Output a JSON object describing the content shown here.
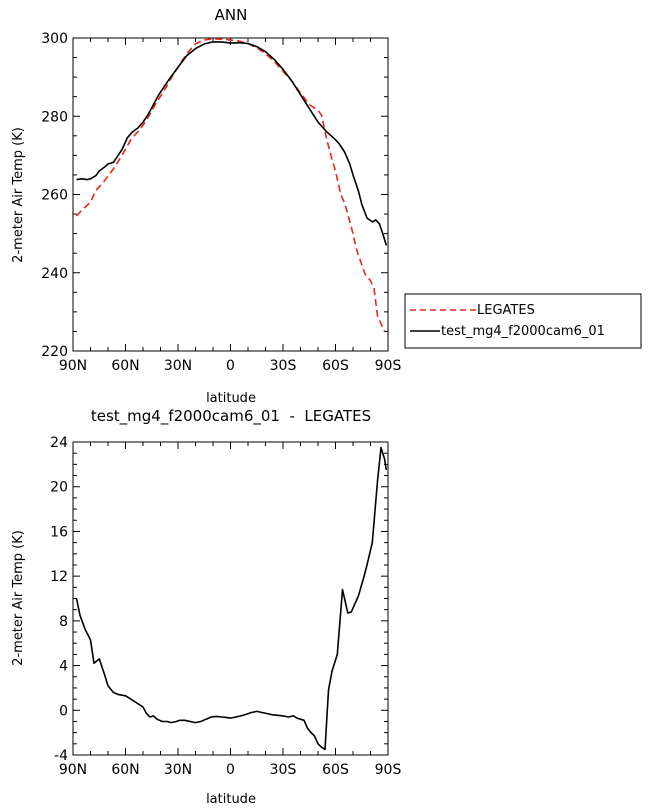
{
  "chart_data": [
    {
      "type": "line",
      "title": "ANN",
      "xlabel": "latitude",
      "ylabel": "2-meter Air Temp (K)",
      "x_tick_labels": [
        "90N",
        "60N",
        "30N",
        "0",
        "30S",
        "60S",
        "90S"
      ],
      "x_ticks": [
        90,
        60,
        30,
        0,
        -30,
        -60,
        -90
      ],
      "xlim": [
        90,
        -90
      ],
      "ylim": [
        220,
        300
      ],
      "y_ticks": [
        220,
        240,
        260,
        280,
        300
      ],
      "legend_position": "right",
      "series": [
        {
          "name": "LEGATES",
          "color": "#e8261e",
          "dash": "dashed",
          "points": [
            [
              88,
              254.5
            ],
            [
              85,
              256
            ],
            [
              80,
              258
            ],
            [
              77,
              261
            ],
            [
              72,
              263.5
            ],
            [
              67,
              266.5
            ],
            [
              62,
              270
            ],
            [
              57,
              274
            ],
            [
              52,
              276.5
            ],
            [
              48,
              279
            ],
            [
              43,
              283
            ],
            [
              38,
              286.5
            ],
            [
              33,
              290.5
            ],
            [
              28,
              294
            ],
            [
              24,
              296.5
            ],
            [
              20,
              298.5
            ],
            [
              15,
              299.5
            ],
            [
              10,
              299.8
            ],
            [
              5,
              299.7
            ],
            [
              0,
              299.5
            ],
            [
              -5,
              299.2
            ],
            [
              -10,
              298.6
            ],
            [
              -15,
              297.5
            ],
            [
              -20,
              296
            ],
            [
              -25,
              294
            ],
            [
              -30,
              291.5
            ],
            [
              -35,
              289
            ],
            [
              -40,
              286
            ],
            [
              -45,
              283
            ],
            [
              -50,
              281.5
            ],
            [
              -52,
              280.3
            ],
            [
              -55,
              274
            ],
            [
              -58,
              269
            ],
            [
              -60,
              266
            ],
            [
              -63,
              260
            ],
            [
              -65,
              258
            ],
            [
              -67,
              255
            ],
            [
              -70,
              250
            ],
            [
              -72,
              246
            ],
            [
              -75,
              242
            ],
            [
              -77,
              239.5
            ],
            [
              -80,
              238
            ],
            [
              -82,
              236
            ],
            [
              -84,
              229
            ],
            [
              -86,
              227
            ],
            [
              -88,
              225
            ]
          ]
        },
        {
          "name": "test_mg4_f2000cam6_01",
          "color": "#000000",
          "dash": "solid",
          "points": [
            [
              88,
              263.8
            ],
            [
              85,
              264
            ],
            [
              82,
              263.8
            ],
            [
              80,
              264
            ],
            [
              77,
              264.8
            ],
            [
              75,
              266
            ],
            [
              72,
              267
            ],
            [
              70,
              267.8
            ],
            [
              67,
              268.2
            ],
            [
              65,
              269.5
            ],
            [
              62,
              271.5
            ],
            [
              59,
              274.5
            ],
            [
              56,
              276
            ],
            [
              53,
              277
            ],
            [
              50,
              278.5
            ],
            [
              47,
              280.5
            ],
            [
              44,
              283
            ],
            [
              41,
              285.5
            ],
            [
              38,
              287.5
            ],
            [
              35,
              289.5
            ],
            [
              30,
              292.5
            ],
            [
              25,
              295.5
            ],
            [
              20,
              297.3
            ],
            [
              15,
              298.5
            ],
            [
              10,
              299
            ],
            [
              5,
              299
            ],
            [
              0,
              298.7
            ],
            [
              -5,
              298.8
            ],
            [
              -10,
              298.6
            ],
            [
              -15,
              297.8
            ],
            [
              -20,
              296.5
            ],
            [
              -25,
              294.5
            ],
            [
              -30,
              292
            ],
            [
              -35,
              289
            ],
            [
              -40,
              285.5
            ],
            [
              -45,
              282
            ],
            [
              -50,
              278.5
            ],
            [
              -55,
              276
            ],
            [
              -60,
              274
            ],
            [
              -62,
              273
            ],
            [
              -65,
              271
            ],
            [
              -68,
              268
            ],
            [
              -70,
              265
            ],
            [
              -73,
              261
            ],
            [
              -75,
              257.5
            ],
            [
              -78,
              254
            ],
            [
              -81,
              253
            ],
            [
              -83,
              253.5
            ],
            [
              -85,
              252.5
            ],
            [
              -87,
              250
            ],
            [
              -89,
              247
            ]
          ]
        }
      ]
    },
    {
      "type": "line",
      "title": "test_mg4_f2000cam6_01  -  LEGATES",
      "xlabel": "latitude",
      "ylabel": "2-meter Air Temp (K)",
      "x_tick_labels": [
        "90N",
        "60N",
        "30N",
        "0",
        "30S",
        "60S",
        "90S"
      ],
      "x_ticks": [
        90,
        60,
        30,
        0,
        -30,
        -60,
        -90
      ],
      "xlim": [
        90,
        -90
      ],
      "ylim": [
        -4,
        24
      ],
      "y_ticks": [
        -4,
        0,
        4,
        8,
        12,
        16,
        20,
        24
      ],
      "series": [
        {
          "color": "#000000",
          "dash": "solid",
          "points": [
            [
              88,
              10
            ],
            [
              86,
              8.5
            ],
            [
              83,
              7.2
            ],
            [
              80,
              6.3
            ],
            [
              78,
              4.2
            ],
            [
              75,
              4.6
            ],
            [
              72,
              3.2
            ],
            [
              70,
              2.2
            ],
            [
              67,
              1.6
            ],
            [
              64,
              1.4
            ],
            [
              60,
              1.3
            ],
            [
              57,
              1
            ],
            [
              54,
              0.7
            ],
            [
              50,
              0.3
            ],
            [
              48,
              -0.3
            ],
            [
              46,
              -0.6
            ],
            [
              44,
              -0.5
            ],
            [
              42,
              -0.8
            ],
            [
              39,
              -1
            ],
            [
              36,
              -1
            ],
            [
              34,
              -1.1
            ],
            [
              31,
              -1
            ],
            [
              29,
              -0.9
            ],
            [
              26,
              -0.9
            ],
            [
              23,
              -1
            ],
            [
              20,
              -1.1
            ],
            [
              17,
              -1
            ],
            [
              14,
              -0.8
            ],
            [
              11,
              -0.6
            ],
            [
              8,
              -0.55
            ],
            [
              5,
              -0.6
            ],
            [
              2,
              -0.65
            ],
            [
              0,
              -0.7
            ],
            [
              -3,
              -0.6
            ],
            [
              -6,
              -0.5
            ],
            [
              -9,
              -0.35
            ],
            [
              -12,
              -0.2
            ],
            [
              -15,
              -0.1
            ],
            [
              -18,
              -0.2
            ],
            [
              -21,
              -0.3
            ],
            [
              -24,
              -0.4
            ],
            [
              -27,
              -0.45
            ],
            [
              -30,
              -0.5
            ],
            [
              -33,
              -0.6
            ],
            [
              -36,
              -0.5
            ],
            [
              -38,
              -0.7
            ],
            [
              -40,
              -0.8
            ],
            [
              -42,
              -0.9
            ],
            [
              -44,
              -1.6
            ],
            [
              -46,
              -2
            ],
            [
              -48,
              -2.3
            ],
            [
              -50,
              -3
            ],
            [
              -52,
              -3.3
            ],
            [
              -54,
              -3.5
            ],
            [
              -56,
              1.8
            ],
            [
              -58,
              3.5
            ],
            [
              -61,
              5
            ],
            [
              -64,
              10.8
            ],
            [
              -67,
              8.7
            ],
            [
              -69,
              8.8
            ],
            [
              -71,
              9.5
            ],
            [
              -73,
              10.2
            ],
            [
              -76,
              11.8
            ],
            [
              -78,
              13
            ],
            [
              -81,
              15
            ],
            [
              -84,
              20.5
            ],
            [
              -86,
              23.5
            ],
            [
              -88,
              22.5
            ],
            [
              -89,
              21.5
            ]
          ]
        }
      ]
    }
  ]
}
